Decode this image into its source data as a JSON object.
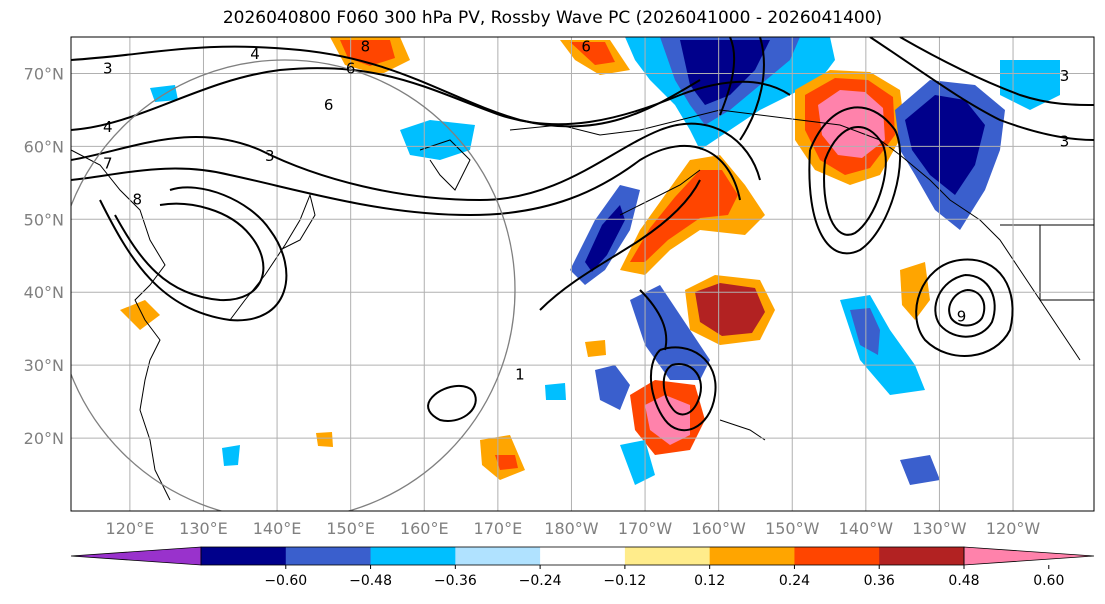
{
  "chart_data": {
    "type": "map",
    "title": "2026040800 F060 300 hPa PV, Rossby Wave PC (2026041000 - 2026041400)",
    "lat_labels": [
      "70°N",
      "60°N",
      "50°N",
      "40°N",
      "30°N",
      "20°N"
    ],
    "lat_values": [
      70,
      60,
      50,
      40,
      30,
      20
    ],
    "lon_labels": [
      "120°E",
      "130°E",
      "140°E",
      "150°E",
      "160°E",
      "170°E",
      "180°W",
      "170°W",
      "160°W",
      "150°W",
      "140°W",
      "130°W",
      "120°W"
    ],
    "lon_values": [
      120,
      130,
      140,
      150,
      160,
      170,
      180,
      190,
      200,
      210,
      220,
      230,
      240
    ],
    "extent": {
      "lon_min": 112,
      "lon_max": 251,
      "lat_min": 10,
      "lat_max": 75
    },
    "colorbar": {
      "ticks": [
        "−0.60",
        "−0.48",
        "−0.36",
        "−0.24",
        "−0.12",
        "0.12",
        "0.24",
        "0.36",
        "0.48",
        "0.60"
      ],
      "colors": [
        "#9932cc",
        "#00008b",
        "#3a5fcd",
        "#00bfff",
        "#b0e2ff",
        "#ffffff",
        "#ffec8b",
        "#ffa500",
        "#ff4500",
        "#b22222",
        "#ff82ab"
      ]
    },
    "contour_labels": [
      {
        "text": "3",
        "lon": 117,
        "lat": 70
      },
      {
        "text": "4",
        "lon": 117,
        "lat": 62
      },
      {
        "text": "7",
        "lon": 117,
        "lat": 57
      },
      {
        "text": "6",
        "lon": 150,
        "lat": 70
      },
      {
        "text": "4",
        "lon": 137,
        "lat": 72
      },
      {
        "text": "6",
        "lon": 147,
        "lat": 65
      },
      {
        "text": "3",
        "lon": 139,
        "lat": 58
      },
      {
        "text": "8",
        "lon": 121,
        "lat": 52
      },
      {
        "text": "8",
        "lon": 152,
        "lat": 73
      },
      {
        "text": "6",
        "lon": 182,
        "lat": 73
      },
      {
        "text": "1",
        "lon": 173,
        "lat": 28
      },
      {
        "text": "9",
        "lon": 233,
        "lat": 36
      },
      {
        "text": "3",
        "lon": 247,
        "lat": 69
      },
      {
        "text": "3",
        "lon": 247,
        "lat": 60
      }
    ],
    "features": "300 hPa potential vorticity contours (black) over shaded Rossby wave principal component anomalies"
  }
}
